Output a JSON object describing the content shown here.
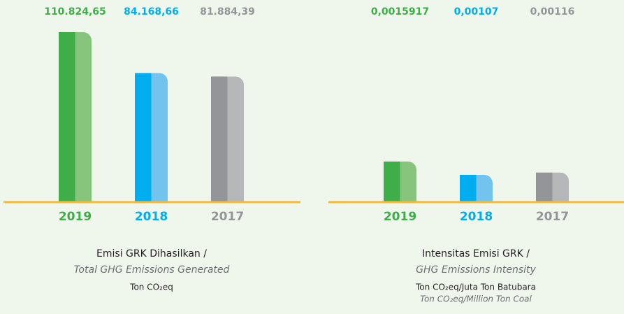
{
  "chart_data": [
    {
      "type": "bar",
      "categories": [
        "2019",
        "2018",
        "2017"
      ],
      "values": [
        110824.65,
        84168.66,
        81884.39
      ],
      "value_labels": [
        "110.824,65",
        "84.168,66",
        "81.884,39"
      ],
      "colors": [
        "#3fae49",
        "#00aeef",
        "#939598"
      ],
      "highlight_colors": [
        "#86c57b",
        "#72c3ee",
        "#b5b7b9"
      ],
      "title": "Emisi GRK Dihasilkan /",
      "subtitle": "Total GHG Emissions Generated",
      "unit": "Ton CO₂eq"
    },
    {
      "type": "bar",
      "categories": [
        "2019",
        "2018",
        "2017"
      ],
      "values": [
        0.0015917,
        0.00107,
        0.00116
      ],
      "value_labels": [
        "0,0015917",
        "0,00107",
        "0,00116"
      ],
      "colors": [
        "#3fae49",
        "#00aeef",
        "#939598"
      ],
      "highlight_colors": [
        "#86c57b",
        "#72c3ee",
        "#b5b7b9"
      ],
      "title": "Intensitas Emisi GRK /",
      "subtitle": "GHG Emissions Intensity",
      "unit": "Ton CO₂eq/Juta Ton Batubara",
      "unit_subtitle": "Ton CO₂eq/Million Ton Coal"
    }
  ]
}
